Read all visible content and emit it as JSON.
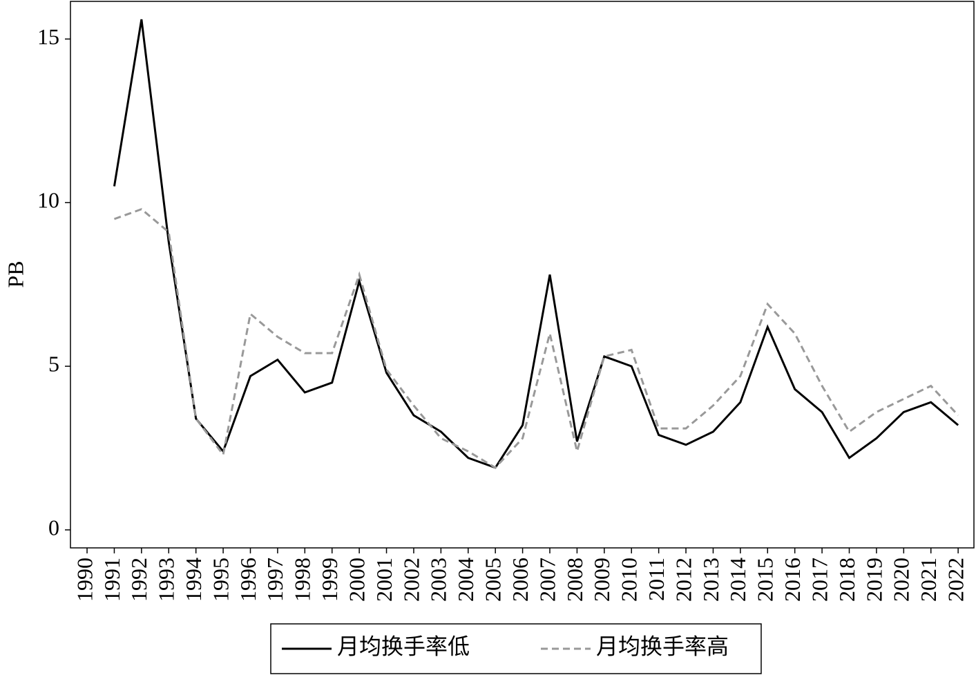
{
  "chart_data": {
    "type": "line",
    "ylabel": "PB",
    "x": [
      1990,
      1991,
      1992,
      1993,
      1994,
      1995,
      1996,
      1997,
      1998,
      1999,
      2000,
      2001,
      2002,
      2003,
      2004,
      2005,
      2006,
      2007,
      2008,
      2009,
      2010,
      2011,
      2012,
      2013,
      2014,
      2015,
      2016,
      2017,
      2018,
      2019,
      2020,
      2021,
      2022
    ],
    "xlim": [
      1989.39,
      2022.58
    ],
    "xticks": [
      1990,
      1991,
      1992,
      1993,
      1994,
      1995,
      1996,
      1997,
      1998,
      1999,
      2000,
      2001,
      2002,
      2003,
      2004,
      2005,
      2006,
      2007,
      2008,
      2009,
      2010,
      2011,
      2012,
      2013,
      2014,
      2015,
      2016,
      2017,
      2018,
      2019,
      2020,
      2021,
      2022
    ],
    "ylim": [
      -0.55,
      16.15
    ],
    "yticks": [
      0,
      5,
      10,
      15
    ],
    "series": [
      {
        "name": "月均换手率低",
        "color": "#000000",
        "dash": false,
        "values": [
          null,
          10.5,
          15.6,
          8.8,
          3.4,
          2.4,
          4.7,
          5.2,
          4.2,
          4.5,
          7.6,
          4.8,
          3.5,
          3.0,
          2.2,
          1.9,
          3.2,
          7.8,
          2.7,
          5.3,
          5.0,
          2.9,
          2.6,
          3.0,
          3.9,
          6.2,
          4.3,
          3.6,
          2.2,
          2.8,
          3.6,
          3.9,
          3.2
        ]
      },
      {
        "name": "月均换手率高",
        "color": "#999999",
        "dash": true,
        "values": [
          null,
          9.5,
          9.8,
          9.1,
          3.4,
          2.3,
          6.6,
          5.9,
          5.4,
          5.4,
          7.8,
          4.9,
          3.8,
          2.8,
          2.4,
          1.9,
          2.8,
          6.0,
          2.4,
          5.3,
          5.5,
          3.1,
          3.1,
          3.8,
          4.7,
          6.9,
          6.0,
          4.4,
          3.0,
          3.6,
          4.0,
          4.4,
          3.5
        ]
      }
    ]
  }
}
